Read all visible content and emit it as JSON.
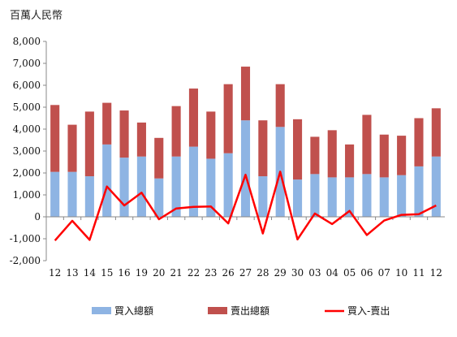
{
  "chart_data": {
    "type": "bar",
    "unit_label": "百萬人民幣",
    "categories": [
      "12",
      "13",
      "14",
      "15",
      "16",
      "19",
      "20",
      "21",
      "22",
      "23",
      "26",
      "27",
      "28",
      "29",
      "30",
      "03",
      "04",
      "05",
      "06",
      "07",
      "10",
      "11",
      "12"
    ],
    "ylim": [
      -2000,
      8000
    ],
    "yticks": [
      "-2,000",
      "-1,000",
      "0",
      "1,000",
      "2,000",
      "3,000",
      "4,000",
      "5,000",
      "6,000",
      "7,000",
      "8,000"
    ],
    "ytick_values": [
      -2000,
      -1000,
      0,
      1000,
      2000,
      3000,
      4000,
      5000,
      6000,
      7000,
      8000
    ],
    "grid": false,
    "legend_position": "bottom",
    "colors": {
      "buy": "#8eb4e3",
      "sell": "#c0504d",
      "net": "#ff0000"
    },
    "series": [
      {
        "name": "買入總額",
        "kind": "stacked-bar",
        "values": [
          2050,
          2050,
          1850,
          3300,
          2700,
          2750,
          1750,
          2750,
          3200,
          2650,
          2900,
          4400,
          1850,
          4100,
          1700,
          1950,
          1800,
          1800,
          1950,
          1800,
          1900,
          2300,
          2750
        ]
      },
      {
        "name": "賣出總額",
        "kind": "stacked-bar",
        "values": [
          3050,
          2150,
          2950,
          1900,
          2150,
          1550,
          1850,
          2300,
          2650,
          2150,
          3150,
          2450,
          2550,
          1950,
          2750,
          1700,
          2150,
          1500,
          2700,
          1950,
          1800,
          2200,
          2200
        ]
      },
      {
        "name": "買入-賣出",
        "kind": "line",
        "values": [
          -1080,
          -180,
          -1050,
          1380,
          520,
          1100,
          -110,
          380,
          450,
          470,
          -300,
          1920,
          -760,
          2060,
          -1030,
          150,
          -330,
          270,
          -830,
          -170,
          90,
          120,
          520
        ]
      }
    ]
  }
}
